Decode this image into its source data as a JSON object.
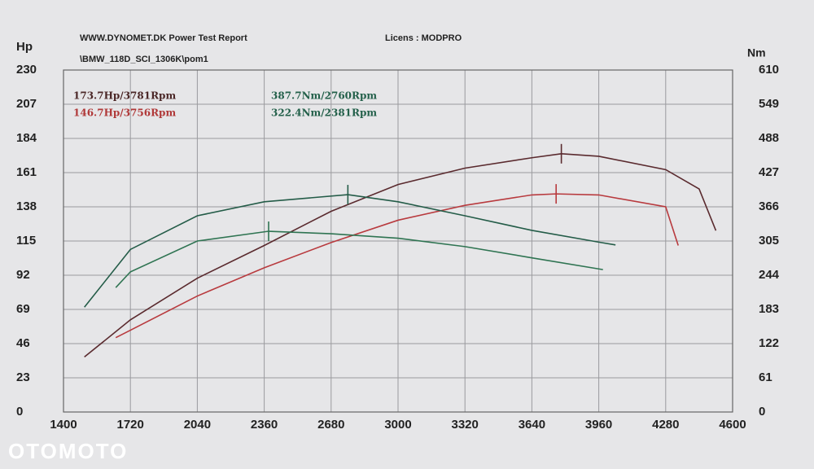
{
  "chart_data": {
    "type": "line",
    "header": "WWW.DYNOMET.DK  Power Test Report",
    "license": "Licens :  MODPRO",
    "file": "\\BMW_118D_SCI_1306K\\pom1",
    "y_label": "Hp",
    "y2_label": "Nm",
    "watermark": "OTOMOTO",
    "annotations": [
      {
        "text": "173.7Hp/3781Rpm",
        "color": "#4a2626"
      },
      {
        "text": "146.7Hp/3756Rpm",
        "color": "#b03838"
      },
      {
        "text": "387.7Nm/2760Rpm",
        "color": "#23604a"
      },
      {
        "text": "322.4Nm/2381Rpm",
        "color": "#23604a"
      }
    ],
    "xlim": [
      1400,
      4600
    ],
    "xticks": [
      1400,
      1720,
      2040,
      2360,
      2680,
      3000,
      3320,
      3640,
      3960,
      4280,
      4600
    ],
    "ylim": [
      0,
      230
    ],
    "yticks": [
      0,
      23,
      46,
      69,
      92,
      115,
      138,
      161,
      184,
      207,
      230
    ],
    "y2lim": [
      0,
      610
    ],
    "y2ticks": [
      0,
      61,
      122,
      183,
      244,
      305,
      366,
      427,
      488,
      549,
      610
    ],
    "grid": true,
    "series": [
      {
        "color": "#5a2a2e",
        "x": [
          1500,
          1720,
          2040,
          2360,
          2680,
          3000,
          3320,
          3640,
          3781,
          3960,
          4280,
          4440,
          4520
        ],
        "values": [
          37,
          62,
          90,
          112,
          135,
          153,
          164,
          171,
          173.7,
          172,
          163,
          150,
          122
        ]
      },
      {
        "color": "#b83a3e",
        "x": [
          1650,
          1720,
          2040,
          2360,
          2680,
          3000,
          3320,
          3640,
          3756,
          3960,
          4280,
          4340
        ],
        "values": [
          50,
          55,
          78,
          97,
          114,
          129,
          139,
          146,
          146.7,
          146,
          138,
          112
        ]
      },
      {
        "color": "#245c48",
        "axis": "y2",
        "x": [
          1500,
          1720,
          2040,
          2360,
          2760,
          3000,
          3320,
          3640,
          3960,
          4040
        ],
        "values": [
          187,
          290,
          350,
          375,
          387.7,
          375,
          350,
          324,
          303,
          298
        ]
      },
      {
        "color": "#2f7452",
        "axis": "y2",
        "x": [
          1650,
          1720,
          2040,
          2381,
          2680,
          3000,
          3320,
          3640,
          3980
        ],
        "values": [
          222,
          250,
          305,
          322.4,
          318,
          310,
          295,
          275,
          254
        ]
      }
    ]
  }
}
